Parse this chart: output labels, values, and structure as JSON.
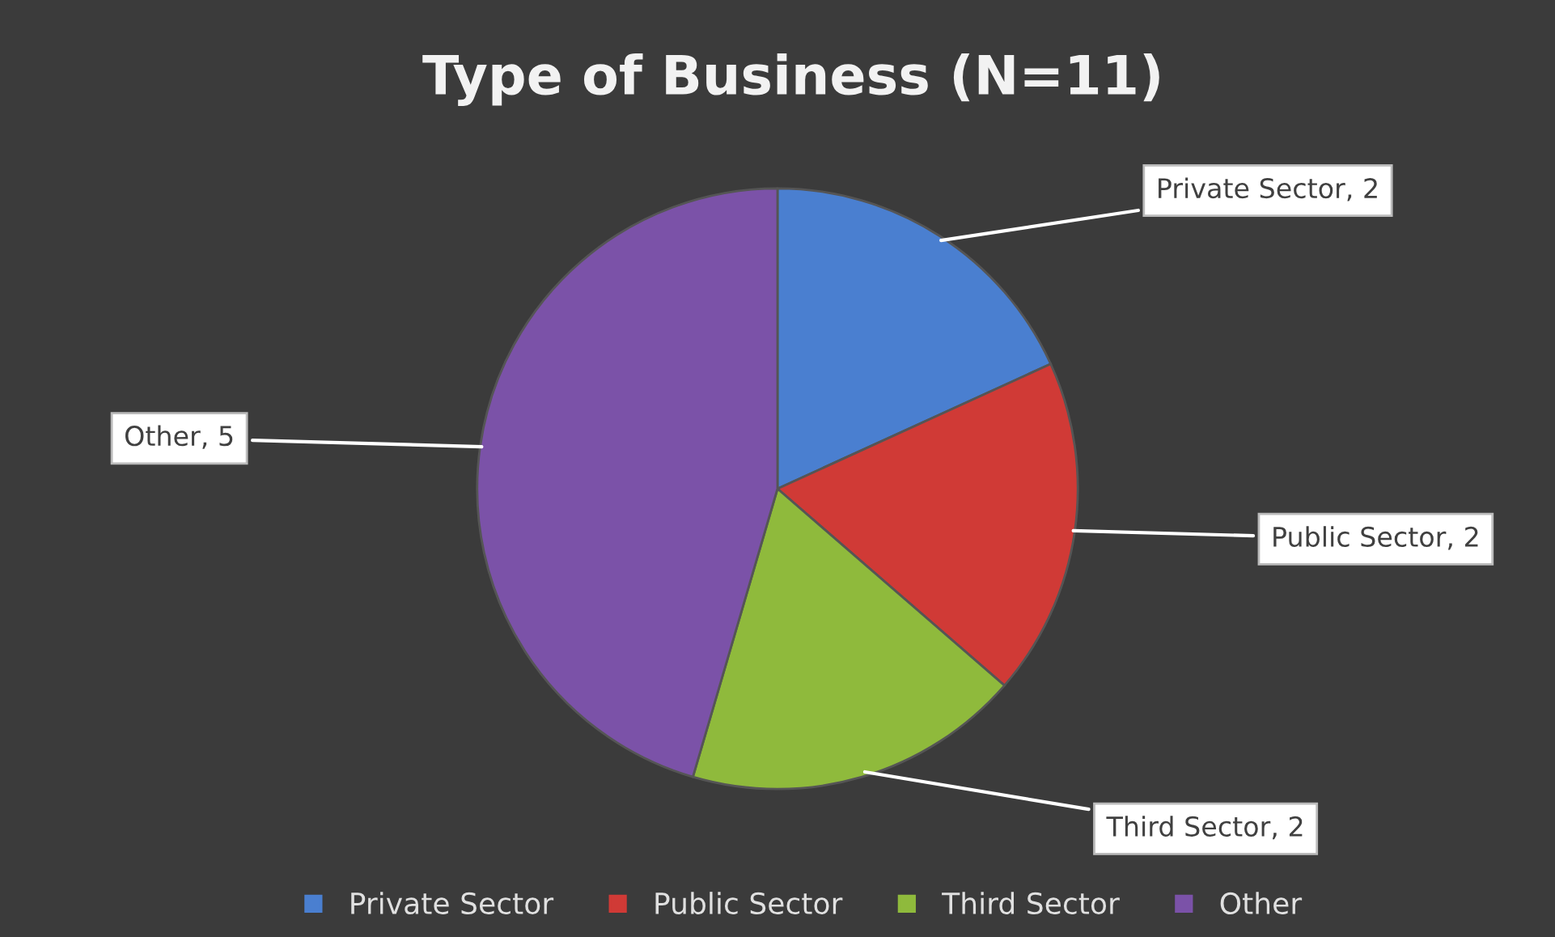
{
  "chart_data": {
    "type": "pie",
    "title": "Type of Business (N=11)",
    "categories": [
      "Private Sector",
      "Public Sector",
      "Third Sector",
      "Other"
    ],
    "values": [
      2,
      2,
      2,
      5
    ],
    "colors": [
      "#4a7fd0",
      "#d03a36",
      "#8fba3c",
      "#7b52a8"
    ],
    "value_labels": [
      "Private Sector, 2",
      "Public Sector, 2",
      "Third Sector, 2",
      "Other, 5"
    ],
    "legend": "bottom"
  }
}
